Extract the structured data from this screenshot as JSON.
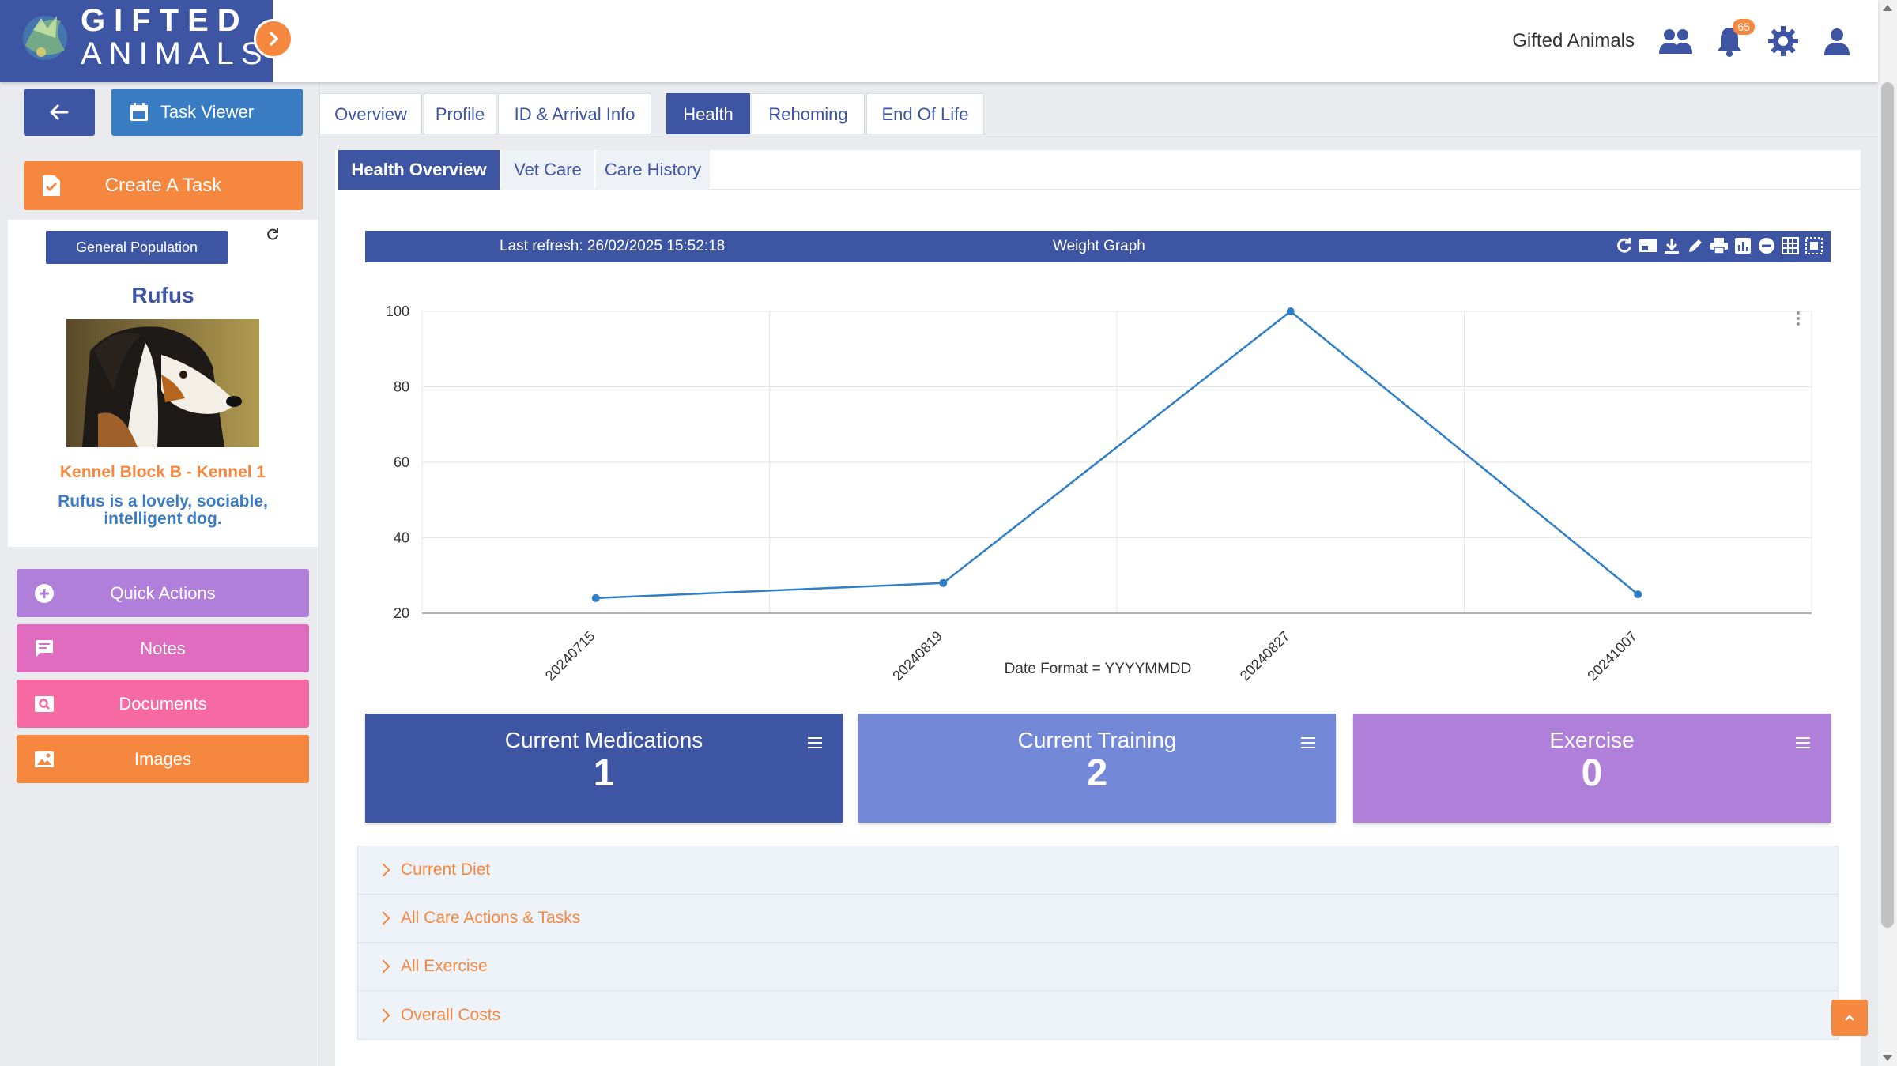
{
  "header": {
    "logo_line1": "GIFTED",
    "logo_line2": "ANIMALS",
    "org_name": "Gifted Animals",
    "notification_count": "65",
    "icons": [
      "users-icon",
      "bell-icon",
      "gear-icon",
      "user-icon"
    ]
  },
  "sidebar": {
    "back_label": "",
    "task_viewer_label": "Task Viewer",
    "create_task_label": "Create A Task",
    "population_label": "General Population",
    "animal_name": "Rufus",
    "kennel": "Kennel Block B - Kennel 1",
    "description": "Rufus is a lovely, sociable, intelligent dog.",
    "actions": [
      {
        "label": "Quick Actions",
        "icon": "plus-circle-icon"
      },
      {
        "label": "Notes",
        "icon": "comment-icon"
      },
      {
        "label": "Documents",
        "icon": "search-document-icon"
      },
      {
        "label": "Images",
        "icon": "image-icon"
      }
    ]
  },
  "tabs": [
    {
      "label": "Overview"
    },
    {
      "label": "Profile"
    },
    {
      "label": "ID & Arrival Info"
    },
    {
      "label": "Health",
      "active": true
    },
    {
      "label": "Rehoming"
    },
    {
      "label": "End Of Life"
    }
  ],
  "subtabs": [
    {
      "label": "Health Overview",
      "active": true
    },
    {
      "label": "Vet Care"
    },
    {
      "label": "Care History"
    }
  ],
  "chart_panel": {
    "last_refresh": "Last refresh: 26/02/2025 15:52:18",
    "title": "Weight Graph",
    "tools": [
      "refresh-icon",
      "image-export-icon",
      "download-icon",
      "edit-icon",
      "print-icon",
      "bar-chart-icon",
      "minus-circle-icon",
      "table-icon",
      "fullscreen-icon"
    ],
    "footnote": "Date Format = YYYYMMDD"
  },
  "chart_data": {
    "type": "line",
    "x": [
      "20240715",
      "20240819",
      "20240827",
      "20241007"
    ],
    "values": [
      24,
      28,
      100,
      25
    ],
    "ylim": [
      20,
      100
    ],
    "yticks": [
      100,
      80,
      60,
      40,
      20
    ],
    "grid": true,
    "line_color": "#2e7fc5"
  },
  "tiles": [
    {
      "title": "Current Medications",
      "value": "1"
    },
    {
      "title": "Current Training",
      "value": "2"
    },
    {
      "title": "Exercise",
      "value": "0"
    }
  ],
  "accordion": [
    {
      "label": "Current Diet"
    },
    {
      "label": "All Care Actions & Tasks"
    },
    {
      "label": "All Exercise"
    },
    {
      "label": "Overall Costs"
    }
  ],
  "colors": {
    "primary": "#3d55a3",
    "accent": "#f6873f",
    "purple": "#b07fd9",
    "pink": "#e06cc0",
    "rose": "#f56aa2"
  }
}
